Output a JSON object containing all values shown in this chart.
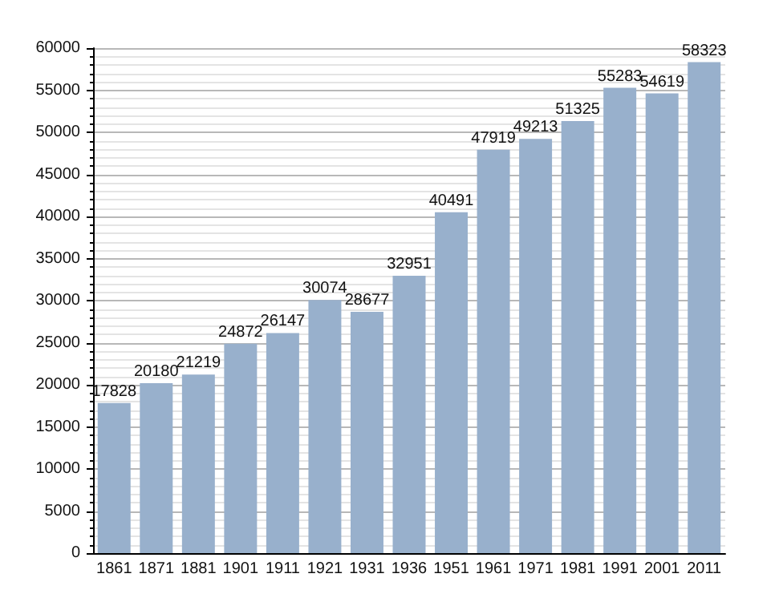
{
  "chart_data": {
    "type": "bar",
    "categories": [
      "1861",
      "1871",
      "1881",
      "1901",
      "1911",
      "1921",
      "1931",
      "1936",
      "1951",
      "1961",
      "1971",
      "1981",
      "1991",
      "2001",
      "2011"
    ],
    "values": [
      17828,
      20180,
      21219,
      24872,
      26147,
      30074,
      28677,
      32951,
      40491,
      47919,
      49213,
      51325,
      55283,
      54619,
      58323
    ],
    "color": "#98b0cc",
    "ylim": [
      0,
      60000
    ],
    "yticks": [
      0,
      5000,
      10000,
      15000,
      20000,
      25000,
      30000,
      35000,
      40000,
      45000,
      50000,
      55000,
      60000
    ],
    "grid": "y",
    "data_labels": true
  }
}
